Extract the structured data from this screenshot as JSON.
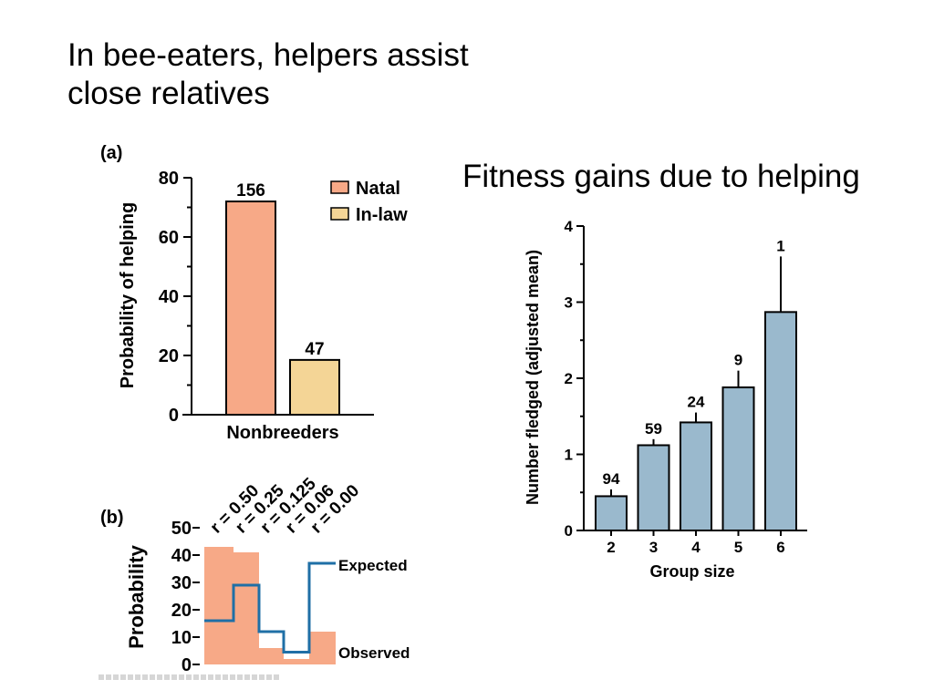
{
  "slide": {
    "title_line1": "In bee-eaters, helpers assist",
    "title_line2": "close relatives",
    "subtitle": "Fitness gains due to helping"
  },
  "colors": {
    "natal": "#f7a987",
    "inlaw": "#f4d596",
    "bar_blue": "#9ab9cd",
    "expected_line": "#1f6fa6",
    "observed_fill": "#f7a987"
  },
  "chart_data": [
    {
      "panel": "(a)",
      "type": "bar",
      "title": "",
      "xlabel": "Nonbreeders",
      "ylabel": "Probability of helping",
      "ylim": [
        0,
        80
      ],
      "yticks": [
        0,
        20,
        40,
        60,
        80
      ],
      "legend_placement": "top-right",
      "series": [
        {
          "name": "Natal",
          "values": [
            72
          ],
          "label": "156",
          "color": "#f7a987"
        },
        {
          "name": "In-law",
          "values": [
            18.5
          ],
          "label": "47",
          "color": "#f4d596"
        }
      ]
    },
    {
      "panel": "(b)",
      "type": "area",
      "ylabel": "Probability",
      "ylim": [
        0,
        50
      ],
      "yticks": [
        0,
        10,
        20,
        30,
        40,
        50
      ],
      "categories": [
        "r = 0.50",
        "r = 0.25",
        "r = 0.125",
        "r = 0.06",
        "r = 0.00"
      ],
      "series": [
        {
          "name": "Observed",
          "values": [
            43,
            41,
            6,
            2,
            12
          ]
        },
        {
          "name": "Expected",
          "values": [
            16,
            29,
            12,
            4.5,
            37
          ]
        }
      ]
    },
    {
      "type": "bar",
      "title": "",
      "xlabel": "Group size",
      "ylabel": "Number fledged (adjusted mean)",
      "ylim": [
        0,
        4
      ],
      "yticks": [
        0,
        1,
        2,
        3,
        4
      ],
      "categories": [
        "2",
        "3",
        "4",
        "5",
        "6"
      ],
      "values": [
        0.45,
        1.12,
        1.42,
        1.88,
        2.87
      ],
      "error_top": [
        0.54,
        1.2,
        1.55,
        2.1,
        3.6
      ],
      "bar_labels": [
        "94",
        "59",
        "24",
        "9",
        "1"
      ]
    }
  ]
}
